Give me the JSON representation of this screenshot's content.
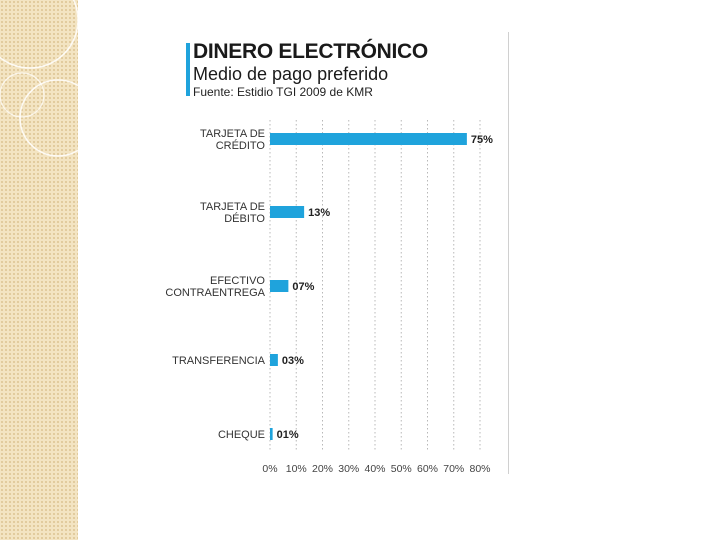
{
  "slide": {
    "accent_color": "#1fa3dc",
    "band_color": "#f3e4c2"
  },
  "header": {
    "title": "DINERO ELECTRÓNICO",
    "subtitle": "Medio de pago preferido",
    "source": "Fuente: Estidio TGI 2009 de KMR"
  },
  "chart_data": {
    "type": "bar",
    "orientation": "horizontal",
    "title": "DINERO ELECTRÓNICO",
    "subtitle": "Medio de pago preferido",
    "source": "Fuente: Estidio TGI 2009 de KMR",
    "categories": [
      [
        "TARJETA DE",
        "CRÉDITO"
      ],
      [
        "TARJETA DE",
        "DÉBITO"
      ],
      [
        "EFECTIVO",
        "CONTRAENTREGA"
      ],
      [
        "TRANSFERENCIA"
      ],
      [
        "CHEQUE"
      ]
    ],
    "values": [
      75,
      13,
      7,
      3,
      1
    ],
    "value_labels": [
      "75%",
      "13%",
      "07%",
      "03%",
      "01%"
    ],
    "xlim": [
      0,
      80
    ],
    "x_ticks": [
      0,
      10,
      20,
      30,
      40,
      50,
      60,
      70,
      80
    ],
    "x_tick_labels": [
      "0%",
      "10%",
      "20%",
      "30%",
      "40%",
      "50%",
      "60%",
      "70%",
      "80%"
    ],
    "bar_color": "#1fa3dc",
    "grid": "vertical-dotted",
    "legend": "none"
  }
}
